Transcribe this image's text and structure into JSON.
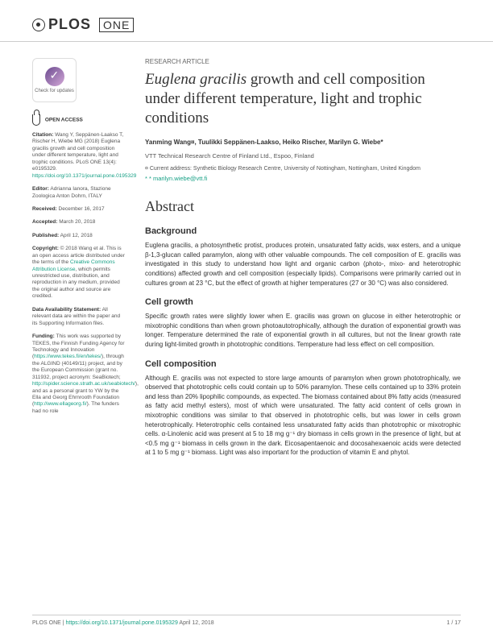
{
  "journal": {
    "name": "PLOS",
    "subname": "ONE"
  },
  "article": {
    "type": "RESEARCH ARTICLE",
    "title_italic": "Euglena gracilis",
    "title_rest": " growth and cell composition under different temperature, light and trophic conditions",
    "authors": "Yanming Wang¤, Tuulikki Seppänen-Laakso, Heiko Rischer, Marilyn G. Wiebe*",
    "affiliation": "VTT Technical Research Centre of Finland Ltd., Espoo, Finland",
    "current_address": "¤ Current address: Synthetic Biology Research Centre, University of Nottingham, Nottingham, United Kingdom",
    "email": "* marilyn.wiebe@vtt.fi"
  },
  "abstract": {
    "heading": "Abstract",
    "sections": [
      {
        "heading": "Background",
        "text": "Euglena gracilis, a photosynthetic protist, produces protein, unsaturated fatty acids, wax esters, and a unique β-1,3-glucan called paramylon, along with other valuable compounds. The cell composition of E. gracilis was investigated in this study to understand how light and organic carbon (photo-, mixo- and heterotrophic conditions) affected growth and cell composition (especially lipids). Comparisons were primarily carried out in cultures grown at 23 °C, but the effect of growth at higher temperatures (27 or 30 °C) was also considered."
      },
      {
        "heading": "Cell growth",
        "text": "Specific growth rates were slightly lower when E. gracilis was grown on glucose in either heterotrophic or mixotrophic conditions than when grown photoautotrophically, although the duration of exponential growth was longer. Temperature determined the rate of exponential growth in all cultures, but not the linear growth rate during light-limited growth in phototrophic conditions. Temperature had less effect on cell composition."
      },
      {
        "heading": "Cell composition",
        "text": "Although E. gracilis was not expected to store large amounts of paramylon when grown phototrophically, we observed that phototrophic cells could contain up to 50% paramylon. These cells contained up to 33% protein and less than 20% lipophilic compounds, as expected. The biomass contained about 8% fatty acids (measured as fatty acid methyl esters), most of which were unsaturated. The fatty acid content of cells grown in mixotrophic conditions was similar to that observed in phototrophic cells, but was lower in cells grown heterotrophically. Heterotrophic cells contained less unsaturated fatty acids than phototrophic or mixotrophic cells. α-Linolenic acid was present at 5 to 18 mg g⁻¹ dry biomass in cells grown in the presence of light, but at <0.5 mg g⁻¹ biomass in cells grown in the dark. Eicosapentaenoic and docosahexaenoic acids were detected at 1 to 5 mg g⁻¹ biomass. Light was also important for the production of vitamin E and phytol."
      }
    ]
  },
  "sidebar": {
    "check_updates": "Check for updates",
    "open_access": "OPEN ACCESS",
    "citation_label": "Citation:",
    "citation_text": " Wang Y, Seppänen-Laakso T, Rischer H, Wiebe MG (2018) Euglena gracilis growth and cell composition under different temperature, light and trophic conditions. PLoS ONE 13(4): e0195329. ",
    "citation_doi": "https://doi.org/10.1371/journal.pone.0195329",
    "editor_label": "Editor:",
    "editor_text": " Adrianna Ianora, Stazione Zoologica Anton Dohrn, ITALY",
    "received_label": "Received:",
    "received_text": " December 16, 2017",
    "accepted_label": "Accepted:",
    "accepted_text": " March 20, 2018",
    "published_label": "Published:",
    "published_text": " April 12, 2018",
    "copyright_label": "Copyright:",
    "copyright_text": " © 2018 Wang et al. This is an open access article distributed under the terms of the ",
    "copyright_link": "Creative Commons Attribution License",
    "copyright_text2": ", which permits unrestricted use, distribution, and reproduction in any medium, provided the original author and source are credited.",
    "data_label": "Data Availability Statement:",
    "data_text": " All relevant data are within the paper and its Supporting Information files.",
    "funding_label": "Funding:",
    "funding_text": " This work was supported by TEKES, the Finnish Funding Agency for Technology and Innovation (",
    "funding_link1": "https://www.tekes.fi/en/tekes/",
    "funding_text2": "), through the ALGIND (40149/11) project, and by the European Commission (grant no. 311932, project acronym: SeaBiotech; ",
    "funding_link2": "http://spider.science.strath.ac.uk/seabiotech/",
    "funding_text3": "), and as a personal grant to YW by the Ella and Georg Ehrnrooth Foundation (",
    "funding_link3": "http://www.ellageorg.fi/",
    "funding_text4": "). The funders had no role"
  },
  "footer": {
    "left_prefix": "PLOS ONE | ",
    "doi": "https://doi.org/10.1371/journal.pone.0195329",
    "date": "    April 12, 2018",
    "page": "1 / 17"
  },
  "colors": {
    "link": "#16a085",
    "text": "#333333",
    "border": "#cccccc"
  }
}
